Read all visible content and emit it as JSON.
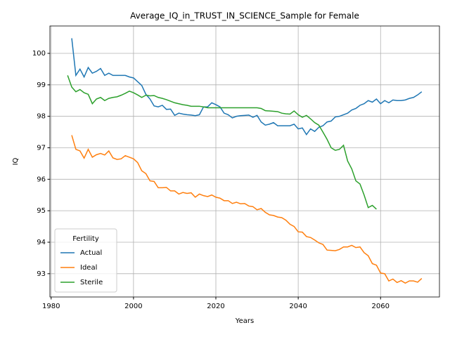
{
  "chart_data": {
    "type": "line",
    "title": "Average_IQ_in_TRUST_IN_SCIENCE_Sample for Female",
    "x_label": "Years",
    "y_label": "IQ",
    "legend_title": "Fertility",
    "legend_position": "lower left",
    "grid": true,
    "x": [
      1984,
      1985,
      1986,
      1987,
      1988,
      1989,
      1990,
      1991,
      1992,
      1993,
      1994,
      1995,
      1996,
      1997,
      1998,
      1999,
      2000,
      2001,
      2002,
      2003,
      2004,
      2005,
      2006,
      2007,
      2008,
      2009,
      2010,
      2011,
      2012,
      2013,
      2014,
      2015,
      2016,
      2017,
      2018,
      2019,
      2020,
      2021,
      2022,
      2023,
      2024,
      2025,
      2026,
      2027,
      2028,
      2029,
      2030,
      2031,
      2032,
      2033,
      2034,
      2035,
      2036,
      2037,
      2038,
      2039,
      2040,
      2041,
      2042,
      2043,
      2044,
      2045,
      2046,
      2047,
      2048,
      2049,
      2050,
      2051,
      2052,
      2053,
      2054,
      2055,
      2056,
      2057,
      2058,
      2059,
      2060,
      2061,
      2062,
      2063,
      2064,
      2065,
      2066,
      2067,
      2068,
      2069,
      2070
    ],
    "series": [
      {
        "name": "Actual",
        "color": "#1f77b4",
        "values": [
          null,
          100.48,
          99.3,
          99.5,
          99.25,
          99.55,
          99.37,
          99.43,
          99.52,
          99.3,
          99.37,
          99.3,
          99.3,
          99.3,
          99.3,
          99.25,
          99.22,
          99.1,
          98.98,
          98.7,
          98.55,
          98.33,
          98.3,
          98.35,
          98.22,
          98.23,
          98.03,
          98.1,
          98.07,
          98.05,
          98.04,
          98.02,
          98.05,
          98.3,
          98.3,
          98.43,
          98.37,
          98.3,
          98.1,
          98.05,
          97.95,
          98.0,
          98.02,
          98.03,
          98.04,
          97.97,
          98.03,
          97.82,
          97.72,
          97.75,
          97.8,
          97.7,
          97.7,
          97.7,
          97.7,
          97.75,
          97.6,
          97.63,
          97.42,
          97.6,
          97.52,
          97.65,
          97.7,
          97.82,
          97.85,
          97.98,
          98.0,
          98.05,
          98.1,
          98.2,
          98.25,
          98.35,
          98.4,
          98.5,
          98.45,
          98.55,
          98.4,
          98.5,
          98.43,
          98.52,
          98.5,
          98.5,
          98.52,
          98.57,
          98.6,
          98.68,
          98.78
        ]
      },
      {
        "name": "Ideal",
        "color": "#ff7f0e",
        "values": [
          null,
          97.4,
          96.95,
          96.9,
          96.67,
          96.95,
          96.7,
          96.78,
          96.82,
          96.77,
          96.9,
          96.68,
          96.63,
          96.65,
          96.75,
          96.7,
          96.65,
          96.53,
          96.27,
          96.18,
          95.95,
          95.93,
          95.73,
          95.73,
          95.74,
          95.63,
          95.63,
          95.53,
          95.58,
          95.55,
          95.57,
          95.43,
          95.53,
          95.48,
          95.45,
          95.5,
          95.43,
          95.4,
          95.32,
          95.32,
          95.23,
          95.27,
          95.22,
          95.23,
          95.15,
          95.13,
          95.03,
          95.07,
          94.95,
          94.87,
          94.85,
          94.8,
          94.78,
          94.7,
          94.57,
          94.5,
          94.33,
          94.32,
          94.18,
          94.15,
          94.07,
          93.98,
          93.93,
          93.75,
          93.74,
          93.73,
          93.77,
          93.85,
          93.85,
          93.9,
          93.83,
          93.85,
          93.67,
          93.57,
          93.32,
          93.27,
          93.02,
          93.0,
          92.77,
          92.83,
          92.72,
          92.78,
          92.7,
          92.77,
          92.77,
          92.73,
          92.85
        ]
      },
      {
        "name": "Sterile",
        "color": "#2ca02c",
        "values": [
          99.3,
          98.93,
          98.78,
          98.85,
          98.75,
          98.7,
          98.4,
          98.55,
          98.6,
          98.5,
          98.57,
          98.6,
          98.62,
          98.67,
          98.73,
          98.8,
          98.75,
          98.68,
          98.6,
          98.67,
          98.65,
          98.66,
          98.6,
          98.57,
          98.53,
          98.48,
          98.43,
          98.4,
          98.37,
          98.35,
          98.32,
          98.32,
          98.32,
          98.3,
          98.27,
          98.27,
          98.27,
          98.27,
          98.27,
          98.27,
          98.27,
          98.27,
          98.27,
          98.27,
          98.27,
          98.27,
          98.27,
          98.25,
          98.18,
          98.17,
          98.16,
          98.15,
          98.1,
          98.08,
          98.07,
          98.17,
          98.05,
          97.97,
          98.03,
          97.92,
          97.8,
          97.72,
          97.5,
          97.27,
          97.0,
          96.92,
          96.95,
          97.08,
          96.58,
          96.33,
          95.95,
          95.85,
          95.5,
          95.1,
          95.17,
          95.05,
          null,
          null,
          null,
          null,
          null,
          null,
          null,
          null,
          null,
          null,
          null
        ]
      }
    ],
    "xlim": [
      1979.7,
      2074.3
    ],
    "xticks": [
      1980,
      2000,
      2020,
      2040,
      2060
    ],
    "ylim": [
      92.26,
      100.87
    ],
    "yticks": [
      93,
      94,
      95,
      96,
      97,
      98,
      99,
      100
    ]
  }
}
